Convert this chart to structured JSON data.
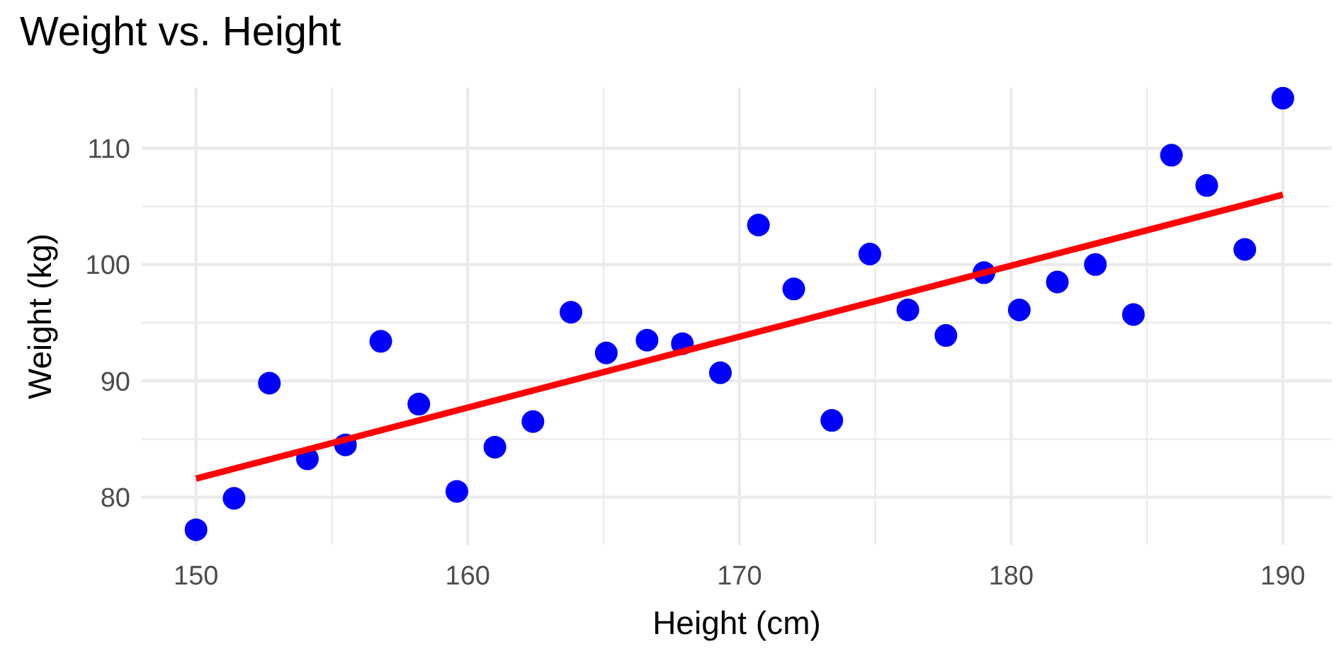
{
  "chart_data": {
    "type": "scatter",
    "title": "Weight vs. Height",
    "xlabel": "Height (cm)",
    "ylabel": "Weight (kg)",
    "xlim": [
      148,
      191.8
    ],
    "ylim": [
      75.9,
      115.2
    ],
    "xticks": [
      150,
      {
        "value": 155,
        "label": null
      },
      160,
      {
        "value": 165,
        "label": null
      },
      170,
      {
        "value": 175,
        "label": null
      },
      180,
      {
        "value": 185,
        "label": null
      },
      190
    ],
    "yticks": [
      80,
      {
        "value": 85,
        "label": null
      },
      90,
      {
        "value": 95,
        "label": null
      },
      100,
      {
        "value": 105,
        "label": null
      },
      110
    ],
    "grid": true,
    "series": [
      {
        "marker": "circle",
        "color": "#0000ff",
        "x": [
          150,
          151.4,
          152.7,
          154.1,
          155.5,
          156.8,
          158.2,
          159.6,
          161.0,
          162.4,
          163.8,
          165.1,
          166.6,
          167.9,
          169.3,
          170.7,
          172.0,
          173.4,
          174.8,
          176.2,
          177.6,
          179.0,
          180.3,
          181.7,
          183.1,
          184.5,
          185.9,
          187.2,
          188.6,
          190
        ],
        "values": [
          77.2,
          79.9,
          89.8,
          83.3,
          84.5,
          93.4,
          88.0,
          80.5,
          84.3,
          86.5,
          95.9,
          92.4,
          93.5,
          93.2,
          90.7,
          103.4,
          97.9,
          86.6,
          100.9,
          96.1,
          93.9,
          99.3,
          96.1,
          98.5,
          100.0,
          95.7,
          109.4,
          106.8,
          101.3,
          114.3
        ]
      },
      {
        "type": "line",
        "color": "#ff0000",
        "x": [
          150,
          190
        ],
        "values": [
          81.6,
          106.0
        ],
        "line_style": "solid"
      }
    ]
  }
}
